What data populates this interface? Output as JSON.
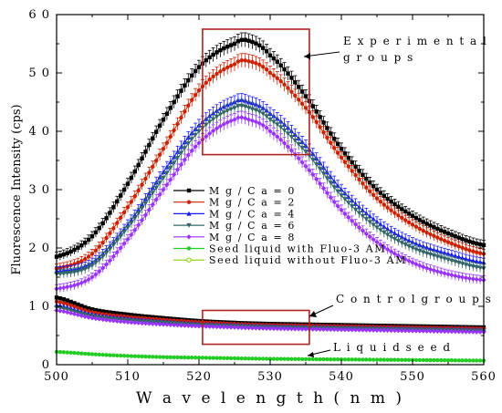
{
  "chart_data": {
    "type": "line",
    "xlabel": "W a v e l e n g t h  ( n m )",
    "ylabel": "Fluorescence Intensity (cps)",
    "xlim": [
      500,
      560
    ],
    "ylim": [
      0,
      60
    ],
    "xticks": [
      500,
      510,
      520,
      530,
      540,
      550,
      560
    ],
    "yticks": [
      0,
      10,
      20,
      30,
      40,
      50,
      60
    ],
    "x_tick_labels": [
      "500",
      "510",
      "520",
      "530",
      "540",
      "550",
      "560"
    ],
    "y_tick_labels": [
      "0",
      "1 0",
      "2 0",
      "3 0",
      "4 0",
      "5 0",
      "6 0"
    ],
    "grid": false,
    "legend_position": "center-left",
    "x": [
      500,
      505,
      510,
      515,
      520,
      525,
      527,
      530,
      535,
      540,
      545,
      550,
      555,
      560
    ],
    "series": [
      {
        "name": "M g / C a = 0",
        "color": "#000000",
        "marker": "square",
        "values": [
          18.5,
          22.0,
          31.0,
          42.0,
          51.0,
          55.0,
          55.5,
          53.0,
          46.0,
          37.0,
          30.0,
          25.5,
          22.5,
          20.5
        ]
      },
      {
        "name": "M g / C a = 2",
        "color": "#cc2200",
        "marker": "circle",
        "values": [
          16.5,
          19.0,
          27.0,
          37.0,
          47.0,
          51.5,
          52.0,
          50.0,
          44.0,
          35.5,
          28.5,
          24.0,
          21.0,
          19.0
        ]
      },
      {
        "name": "M g / C a = 4",
        "color": "#1a1aff",
        "marker": "triangle-up",
        "values": [
          16.0,
          17.5,
          24.0,
          33.0,
          41.0,
          45.0,
          45.0,
          43.0,
          37.5,
          30.0,
          24.5,
          21.0,
          19.0,
          17.5
        ]
      },
      {
        "name": "M g / C a = 6",
        "color": "#336666",
        "marker": "triangle-down",
        "values": [
          15.5,
          17.0,
          23.5,
          32.0,
          40.0,
          44.0,
          44.0,
          42.0,
          36.5,
          29.0,
          23.5,
          20.0,
          18.0,
          16.5
        ]
      },
      {
        "name": "M g / C a = 8",
        "color": "#9933ff",
        "marker": "diamond",
        "values": [
          13.0,
          15.0,
          21.5,
          30.0,
          38.0,
          42.0,
          42.0,
          40.0,
          34.0,
          26.5,
          21.0,
          17.5,
          15.5,
          14.5
        ]
      },
      {
        "name": "",
        "color": "#000000",
        "marker": "square",
        "values": [
          11.5,
          9.5,
          8.6,
          8.0,
          7.5,
          7.2,
          7.1,
          7.0,
          6.9,
          6.8,
          6.7,
          6.6,
          6.5,
          6.4
        ]
      },
      {
        "name": "",
        "color": "#cc2200",
        "marker": "circle",
        "values": [
          10.8,
          9.0,
          8.2,
          7.7,
          7.3,
          7.0,
          6.9,
          6.8,
          6.7,
          6.6,
          6.5,
          6.4,
          6.3,
          6.2
        ]
      },
      {
        "name": "",
        "color": "#1a1aff",
        "marker": "triangle-up",
        "values": [
          10.2,
          8.6,
          7.9,
          7.4,
          7.0,
          6.8,
          6.7,
          6.6,
          6.5,
          6.4,
          6.3,
          6.2,
          6.1,
          6.0
        ]
      },
      {
        "name": "",
        "color": "#336666",
        "marker": "triangle-down",
        "values": [
          9.8,
          8.3,
          7.6,
          7.2,
          6.8,
          6.6,
          6.5,
          6.4,
          6.3,
          6.2,
          6.1,
          6.0,
          5.9,
          5.8
        ]
      },
      {
        "name": "",
        "color": "#9933ff",
        "marker": "diamond",
        "values": [
          9.3,
          8.0,
          7.3,
          6.9,
          6.6,
          6.4,
          6.3,
          6.2,
          6.1,
          6.0,
          5.9,
          5.8,
          5.7,
          5.6
        ]
      },
      {
        "name": "Seed liquid with Fluo-3 AM",
        "color": "#22cc22",
        "marker": "circle",
        "values": [
          2.2,
          1.8,
          1.5,
          1.3,
          1.2,
          1.1,
          1.05,
          1.0,
          0.95,
          0.9,
          0.85,
          0.8,
          0.75,
          0.7
        ]
      },
      {
        "name": "Seed liquid without Fluo-3 AM",
        "color": "#88cc00",
        "marker": "circle-open",
        "values": null
      }
    ],
    "annotations": [
      {
        "text": "E x p e r i m e n t a l",
        "line2": "g r o u p s"
      },
      {
        "text": "C o n t r o l  g r o u p s"
      },
      {
        "text": "L i q u i d  s e e d"
      }
    ],
    "boxes": [
      {
        "x0": 520.5,
        "x1": 535.5,
        "y0": 36,
        "y1": 57.5,
        "color": "#b22222"
      },
      {
        "x0": 520.5,
        "x1": 535.5,
        "y0": 3.5,
        "y1": 9.3,
        "color": "#b22222"
      }
    ]
  }
}
